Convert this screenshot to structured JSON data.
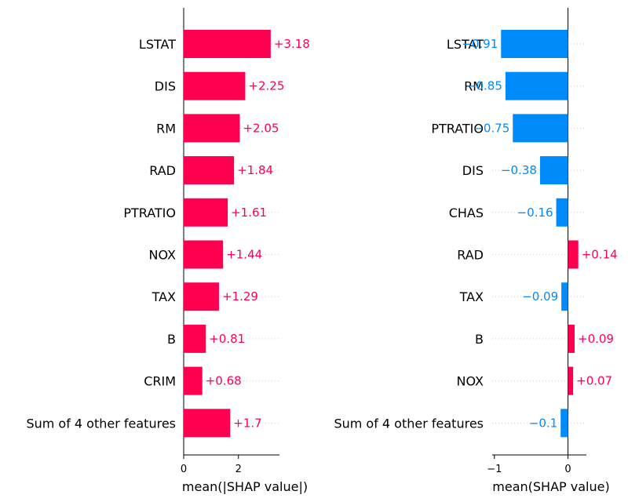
{
  "colors": {
    "positive": "#ff0051",
    "negative": "#008bfb",
    "axis": "#333333",
    "dotted": "#cccccc",
    "label": "#000000"
  },
  "chart_data": [
    {
      "type": "bar",
      "orientation": "horizontal",
      "categories": [
        "LSTAT",
        "DIS",
        "RM",
        "RAD",
        "PTRATIO",
        "NOX",
        "TAX",
        "B",
        "CRIM",
        "Sum of 4 other features"
      ],
      "values": [
        3.18,
        2.25,
        2.05,
        1.84,
        1.61,
        1.44,
        1.29,
        0.81,
        0.68,
        1.7
      ],
      "value_labels": [
        "+3.18",
        "+2.25",
        "+2.05",
        "+1.84",
        "+1.61",
        "+1.44",
        "+1.29",
        "+0.81",
        "+0.68",
        "+1.7"
      ],
      "xlabel": "mean(|SHAP value|)",
      "xlim": [
        0,
        3.5
      ],
      "xticks": [
        0,
        2
      ],
      "xtick_labels": [
        "0",
        "2"
      ],
      "grid": false
    },
    {
      "type": "bar",
      "orientation": "horizontal",
      "categories": [
        "LSTAT",
        "RM",
        "PTRATIO",
        "DIS",
        "CHAS",
        "RAD",
        "TAX",
        "B",
        "NOX",
        "Sum of 4 other features"
      ],
      "values": [
        -0.91,
        -0.85,
        -0.75,
        -0.38,
        -0.16,
        0.14,
        -0.09,
        0.09,
        0.07,
        -0.1
      ],
      "value_labels": [
        "−0.91",
        "−0.85",
        "−0.75",
        "−0.38",
        "−0.16",
        "+0.14",
        "−0.09",
        "+0.09",
        "+0.07",
        "−0.1"
      ],
      "xlabel": "mean(SHAP value)",
      "xlim": [
        -1.03,
        0.25
      ],
      "xticks": [
        -1,
        0
      ],
      "xtick_labels": [
        "−1",
        "0"
      ],
      "grid": false
    }
  ]
}
